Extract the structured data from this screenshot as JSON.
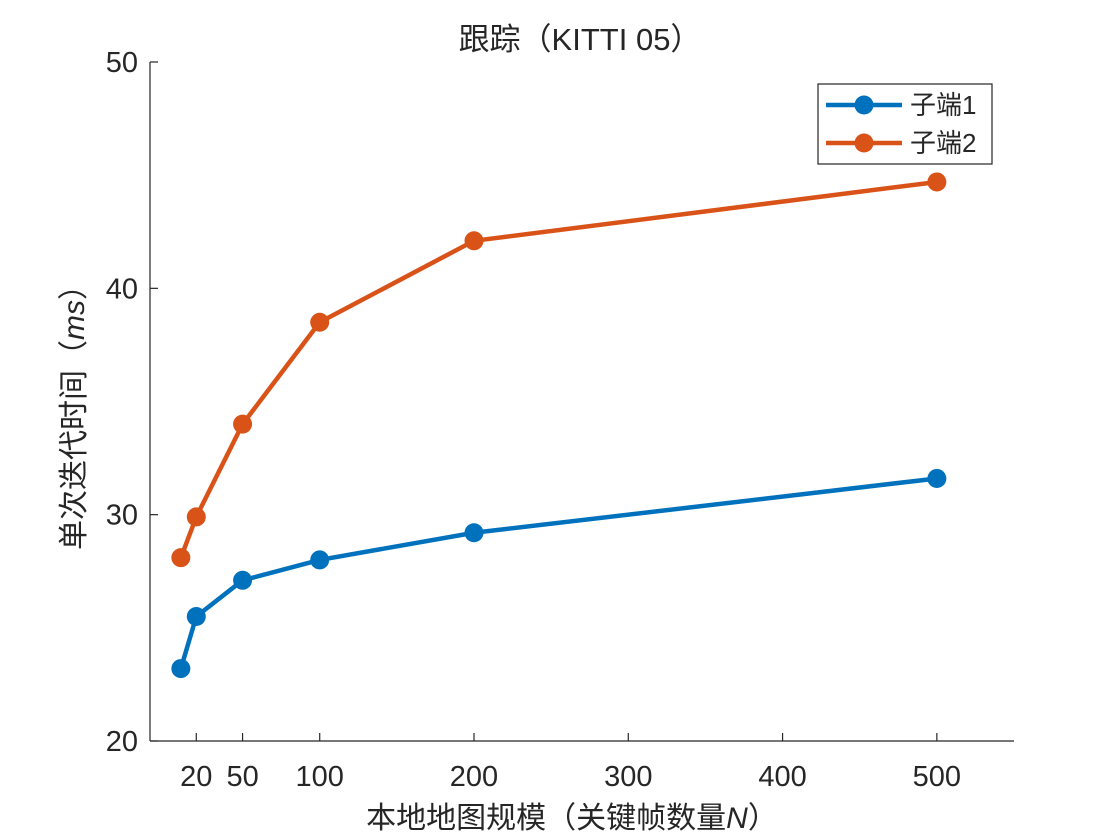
{
  "chart_data": {
    "type": "line",
    "title": "跟踪（KITTI 05）",
    "xlabel": {
      "prefix": "本地地图规模（关键帧数量",
      "italic": "N",
      "suffix": "）"
    },
    "ylabel": {
      "prefix": "单次迭代时间（",
      "italic": "ms",
      "suffix": "）"
    },
    "xlim": [
      -10,
      550
    ],
    "ylim": [
      20,
      50
    ],
    "xticks": [
      20,
      50,
      100,
      200,
      300,
      400,
      500
    ],
    "yticks": [
      20,
      30,
      40,
      50
    ],
    "x": [
      10,
      20,
      50,
      100,
      200,
      500
    ],
    "series": [
      {
        "name": "子端1",
        "color": "#0072BD",
        "values": [
          23.2,
          25.5,
          27.1,
          28.0,
          29.2,
          31.6
        ]
      },
      {
        "name": "子端2",
        "color": "#D95319",
        "values": [
          28.1,
          29.9,
          34.0,
          38.5,
          42.1,
          44.7
        ]
      }
    ],
    "legend_position": "top-right",
    "grid": false
  }
}
